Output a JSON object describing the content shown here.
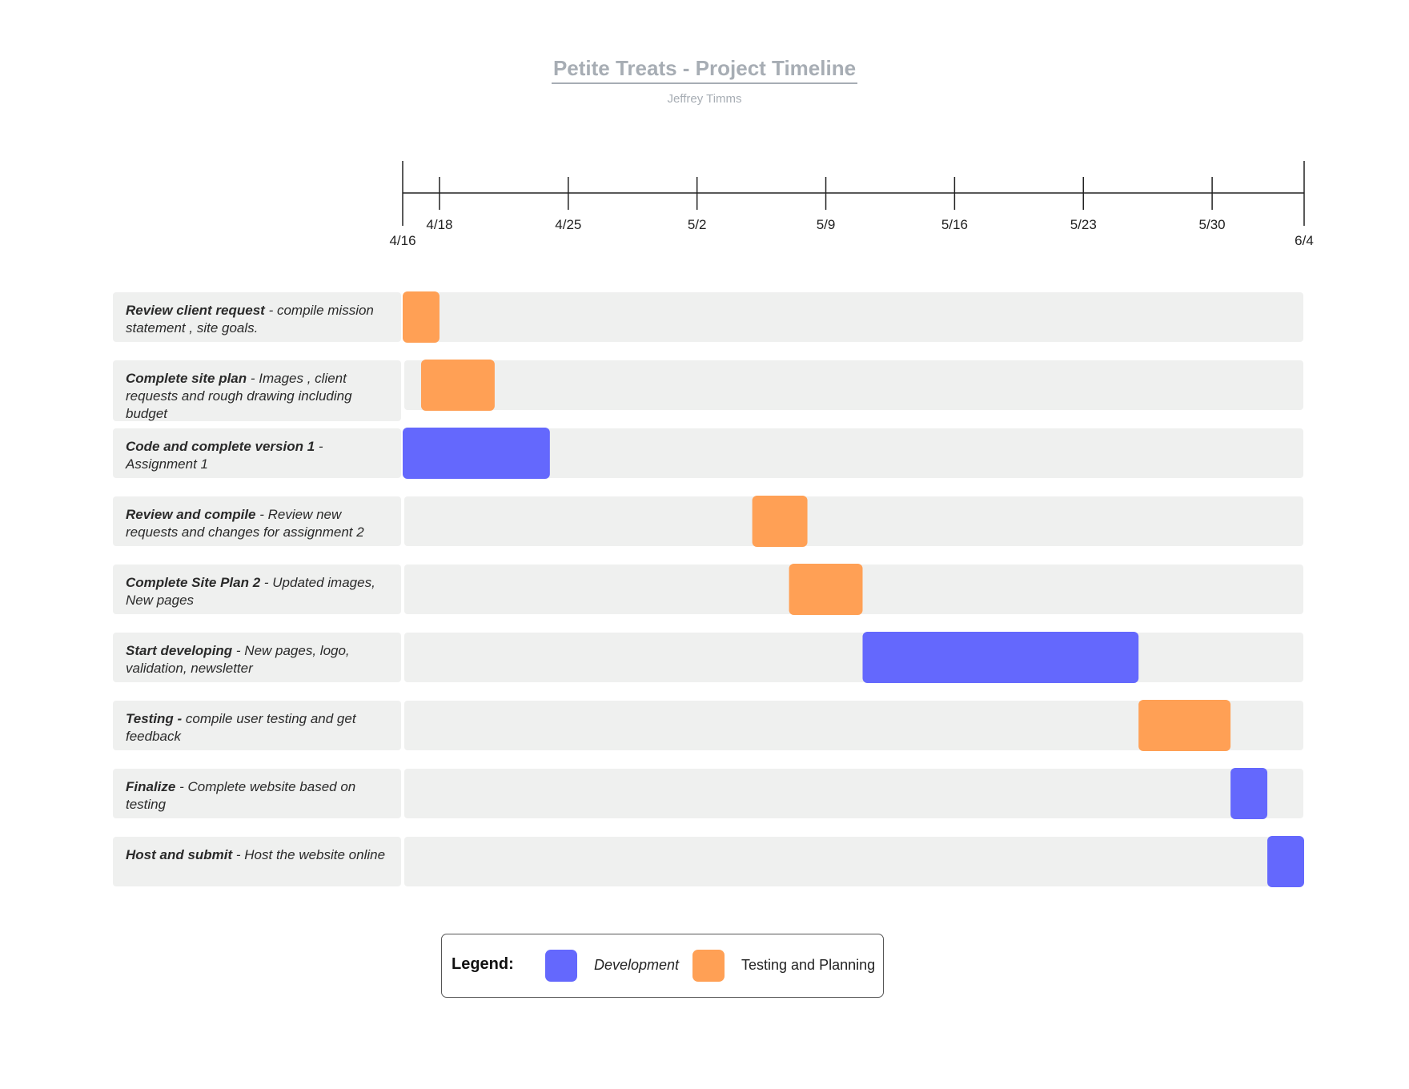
{
  "title": "Petite Treats - Project Timeline",
  "subtitle": "Jeffrey Timms",
  "colors": {
    "development": "#6468fd",
    "testing_planning": "#ffa055",
    "track": "#eff0ef",
    "axis": "#222222"
  },
  "chart_data": {
    "type": "gantt",
    "axis": {
      "start": "4/16",
      "end": "6/4",
      "ticks": [
        "4/16",
        "4/18",
        "4/25",
        "5/2",
        "5/9",
        "5/16",
        "5/23",
        "5/30",
        "6/4"
      ]
    },
    "tasks": [
      {
        "title": "Review client request",
        "detail": " - compile mission statement , site goals.",
        "category": "testing_planning",
        "start": "4/16",
        "end": "4/18"
      },
      {
        "title": "Complete site plan",
        "detail": " - Images , client requests and rough drawing including budget",
        "category": "testing_planning",
        "start": "4/17",
        "end": "4/21"
      },
      {
        "title": "Code and complete version 1",
        "detail": " - Assignment 1",
        "category": "development",
        "start": "4/16",
        "end": "4/24"
      },
      {
        "title": "Review and compile ",
        "detail": " - Review new requests and changes for assignment 2",
        "category": "testing_planning",
        "start": "5/5",
        "end": "5/8"
      },
      {
        "title": "Complete Site Plan 2",
        "detail": " - Updated images, New pages",
        "category": "testing_planning",
        "start": "5/7",
        "end": "5/11"
      },
      {
        "title": "Start developing",
        "detail": " - New pages, logo, validation, newsletter",
        "category": "development",
        "start": "5/11",
        "end": "5/26"
      },
      {
        "title": "Testing -",
        "detail": " compile user testing and get feedback",
        "category": "testing_planning",
        "start": "5/26",
        "end": "5/31"
      },
      {
        "title": "Finalize ",
        "detail": " - Complete website based on testing",
        "category": "development",
        "start": "5/31",
        "end": "6/2"
      },
      {
        "title": "Host and submit",
        "detail": " - Host the website online",
        "category": "development",
        "start": "6/2",
        "end": "6/4"
      }
    ]
  },
  "legend": {
    "title": "Legend:",
    "items": [
      {
        "label": "Development",
        "category": "development"
      },
      {
        "label": "Testing and Planning",
        "category": "testing_planning"
      }
    ]
  }
}
